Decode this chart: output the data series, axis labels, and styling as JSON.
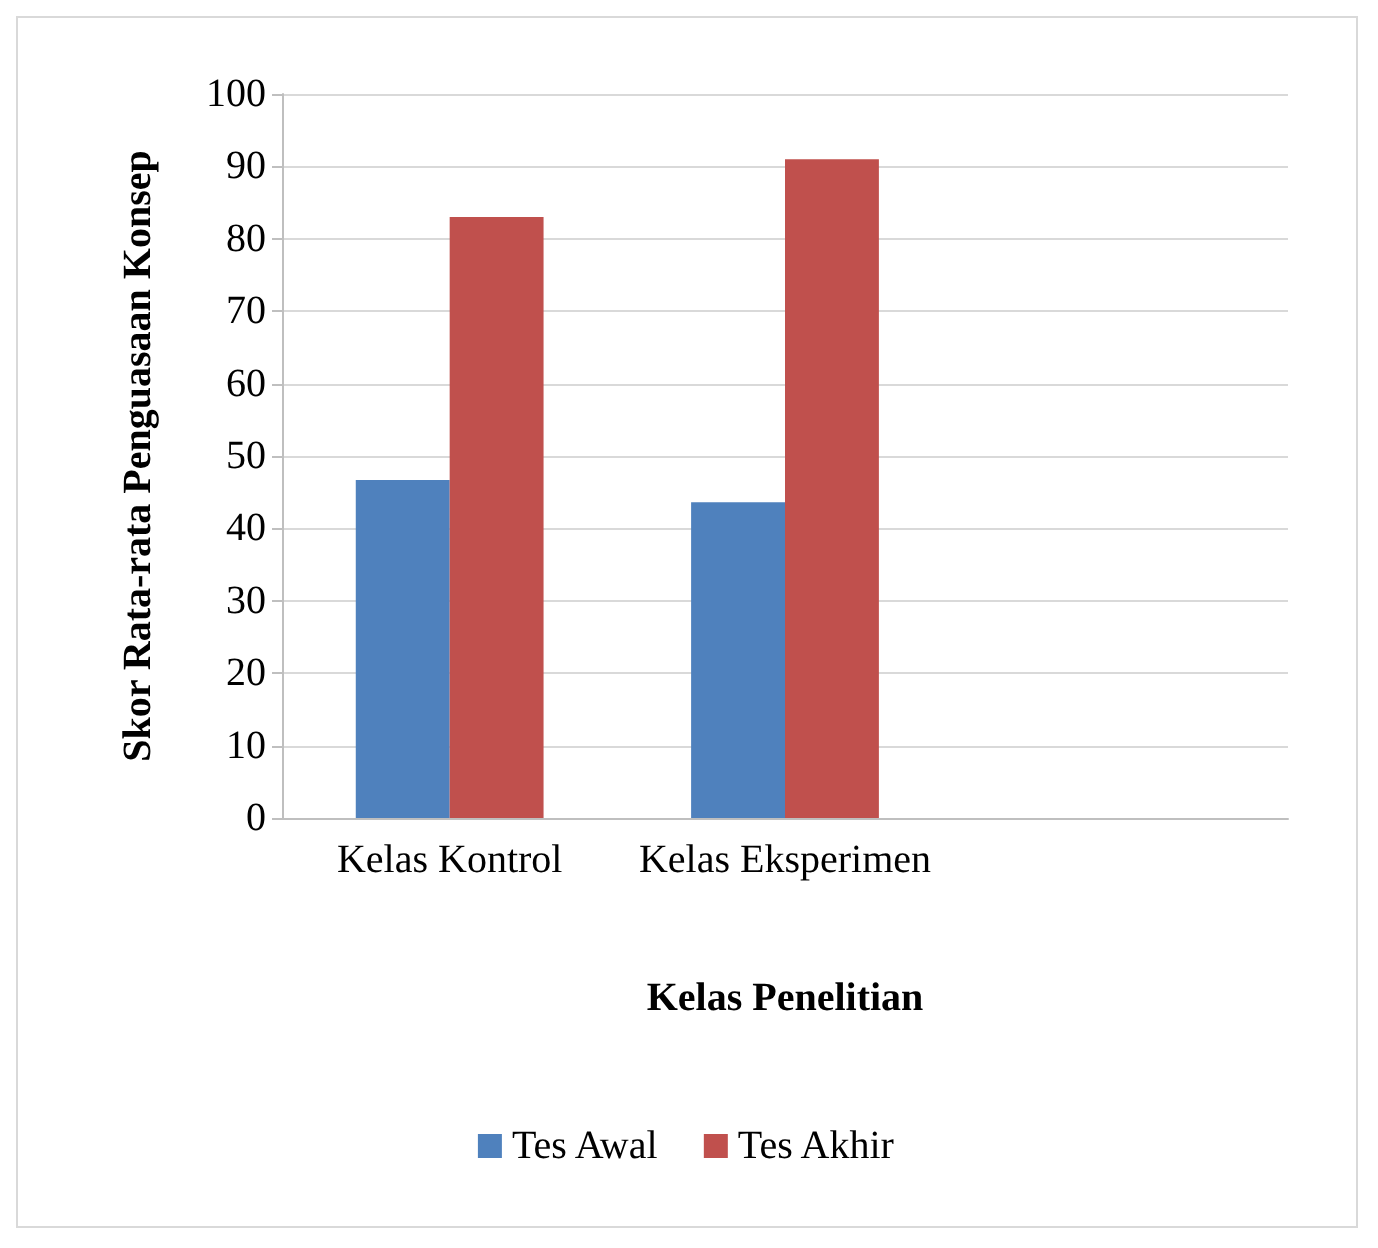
{
  "chart_data": {
    "type": "bar",
    "xlabel": "Kelas Penelitian",
    "ylabel": "Skor Rata-rata Penguasaan Konsep",
    "categories": [
      "Kelas Kontrol",
      "Kelas Eksperimen",
      null
    ],
    "series": [
      {
        "name": "Tes Awal",
        "color": "#4f81bd",
        "values": [
          46.7,
          43.6,
          null
        ]
      },
      {
        "name": "Tes Akhir",
        "color": "#c0504d",
        "values": [
          83,
          91,
          null
        ]
      }
    ],
    "ylim": [
      0,
      100
    ],
    "yticks": [
      0,
      10,
      20,
      30,
      40,
      50,
      60,
      70,
      80,
      90,
      100
    ],
    "grid": "y",
    "legend": "bottom"
  }
}
